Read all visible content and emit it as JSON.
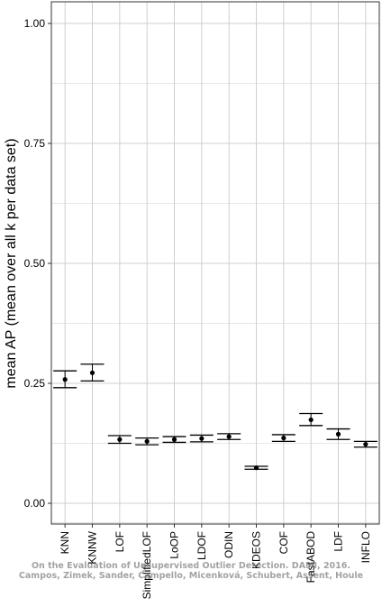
{
  "chart_data": {
    "type": "scatter",
    "ylabel": "mean AP (mean over all k per data set)",
    "xlabel": "",
    "ylim": [
      0,
      1.05
    ],
    "yticks": [
      0.0,
      0.25,
      0.5,
      0.75,
      1.0
    ],
    "ytick_labels": [
      "0.00",
      "0.25",
      "0.50",
      "0.75",
      "1.00"
    ],
    "categories": [
      "KNN",
      "KNNW",
      "LOF",
      "SimplifiedLOF",
      "LoOP",
      "LDOF",
      "ODIN",
      "KDEOS",
      "COF",
      "FastABOD",
      "LDF",
      "INFLO"
    ],
    "values": [
      0.258,
      0.272,
      0.133,
      0.129,
      0.133,
      0.135,
      0.139,
      0.074,
      0.136,
      0.174,
      0.144,
      0.123
    ],
    "error_low": [
      0.241,
      0.255,
      0.125,
      0.122,
      0.127,
      0.128,
      0.133,
      0.071,
      0.129,
      0.162,
      0.133,
      0.117
    ],
    "error_high": [
      0.276,
      0.29,
      0.141,
      0.136,
      0.139,
      0.142,
      0.145,
      0.077,
      0.143,
      0.187,
      0.155,
      0.129
    ],
    "grid": true,
    "colors": {
      "background": "#ffffff",
      "grid": "#cfcfcf",
      "points": "#000000"
    }
  },
  "watermark": {
    "line1": "On the Evaluation of Unsupervised Outlier Detection. DAMI, 2016.",
    "line2": "Campos, Zimek, Sander, Campello, Micenková, Schubert, Assent, Houle"
  }
}
